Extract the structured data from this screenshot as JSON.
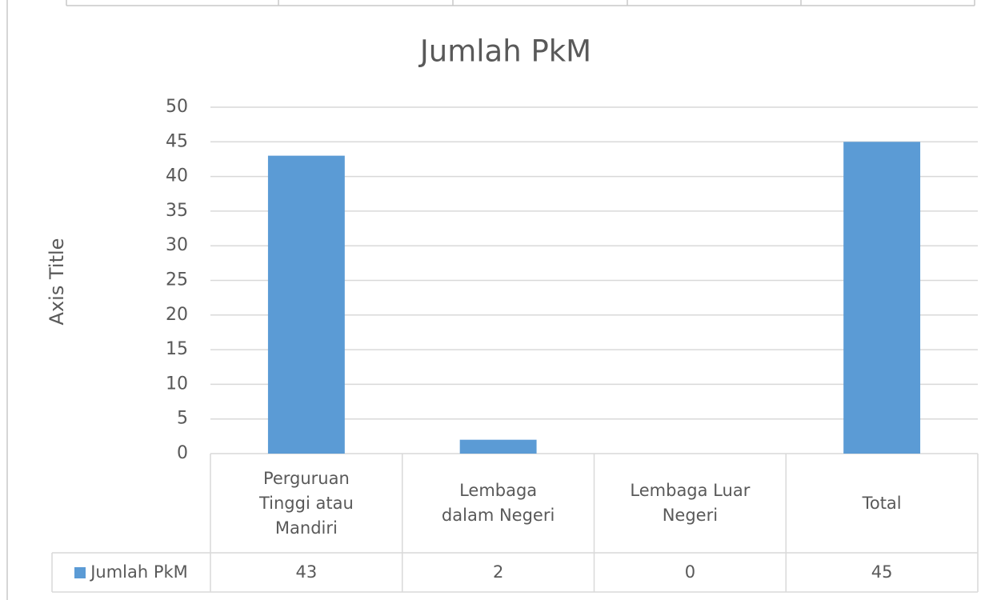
{
  "chart_data": {
    "type": "bar",
    "title": "Jumlah PkM",
    "y_axis_label": "Axis Title",
    "categories": [
      "Perguruan Tinggi atau Mandiri",
      "Lembaga dalam Negeri",
      "Lembaga Luar Negeri",
      "Total"
    ],
    "series": [
      {
        "name": "Jumlah PkM",
        "color": "#5b9bd5",
        "values": [
          43,
          2,
          0,
          45
        ]
      }
    ],
    "ylim": [
      0,
      50
    ],
    "yticks": [
      0,
      5,
      10,
      15,
      20,
      25,
      30,
      35,
      40,
      45,
      50
    ],
    "grid": true,
    "data_table": true
  }
}
